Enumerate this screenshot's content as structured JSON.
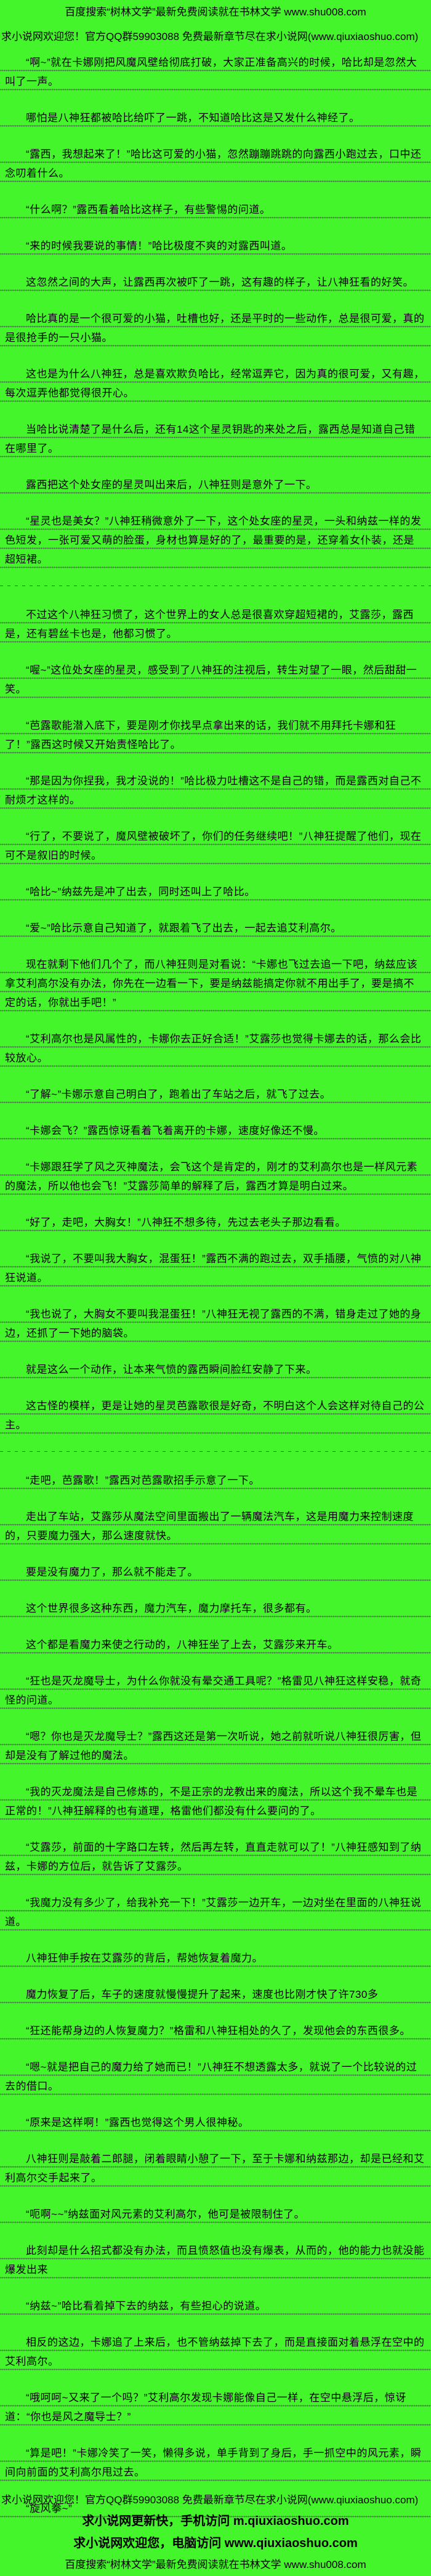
{
  "colors": {
    "background": "#45F52B",
    "text": "#000000",
    "rule_dots": "#4D4D58"
  },
  "header": {
    "line1": "百度搜索“树林文学”最新免费阅读就在书林文学 www.shu008.com",
    "line2": "求小说网欢迎您！官方QQ群59903088 免费最新章节尽在求小说网(www.qiuxiaoshuo.com)"
  },
  "paragraphs": [
    "“啊~”就在卡娜刚把风魔风壁给彻底打破，大家正准备高兴的时候，哈比却是忽然大叫了一声。",
    "哪怕是八神狂都被哈比给吓了一跳，不知道哈比这是又发什么神经了。",
    "“露西，我想起来了！”哈比这可爱的小猫，忽然蹦蹦跳跳的向露西小跑过去，口中还念叨着什么。",
    "“什么啊？”露西看着哈比这样子，有些警惕的问道。",
    "“来的时候我要说的事情！”哈比极度不爽的对露西叫道。",
    "这忽然之间的大声，让露西再次被吓了一跳，这有趣的样子，让八神狂看的好笑。",
    "哈比真的是一个很可爱的小猫，吐槽也好，还是平时的一些动作，总是很可爱，真的是很抢手的一只小猫。",
    "这也是为什么八神狂，总是喜欢欺负哈比，经常逗弄它，因为真的很可爱，又有趣，每次逗弄他都觉得很开心。",
    "当哈比说清楚了是什么后，还有14这个星灵钥匙的来处之后，露西总是知道自己错在哪里了。",
    "露西把这个处女座的星灵叫出来后，八神狂则是意外了一下。",
    "“星灵也是美女？”八神狂稍微意外了一下，这个处女座的星灵，一头和纳兹一样的发色短发，一张可爱又萌的脸蛋，身材也算是好的了，最重要的是，还穿着女仆装，还是超短裙。",
    "",
    "不过这个八神狂习惯了，这个世界上的女人总是很喜欢穿超短裙的，艾露莎，露西是，还有碧丝卡也是，他都习惯了。",
    "“喔~”这位处女座的星灵，感受到了八神狂的注视后，转生对望了一眼，然后甜甜一笑。",
    "“芭露歌能潜入底下，要是刚才你找早点拿出来的话，我们就不用拜托卡娜和狂了！”露西这时候又开始责怪哈比了。",
    "“那是因为你捏我，我才没说的！”哈比极力吐槽这不是自己的错，而是露西对自己不耐烦才这样的。",
    "“行了，不要说了，魔风壁被破坏了，你们的任务继续吧！”八神狂提醒了他们，现在可不是叙旧的时候。",
    "“哈比~”纳兹先是冲了出去，同时还叫上了哈比。",
    "“爱~”哈比示意自己知道了，就跟着飞了出去，一起去追艾利高尔。",
    "现在就剩下他们几个了，而八神狂则是对看说：“卡娜也飞过去追一下吧，纳兹应该拿艾利高尔没有办法，你先在一边看一下，要是纳兹能搞定你就不用出手了，要是搞不定的话，你就出手吧！”",
    "“艾利高尔也是风属性的，卡娜你去正好合适！”艾露莎也觉得卡娜去的话，那么会比较放心。",
    "“了解~”卡娜示意自己明白了，跑着出了车站之后，就飞了过去。",
    "“卡娜会飞？”露西惊讶看着飞着离开的卡娜，速度好像还不慢。",
    "“卡娜跟狂学了风之灭神魔法，会飞这个是肯定的，刚才的艾利高尔也是一样风元素的魔法，所以他也会飞！”艾露莎简单的解释了后，露西才算是明白过来。",
    "“好了，走吧，大胸女！”八神狂不想多待，先过去老头子那边看看。",
    "“我说了，不要叫我大胸女，混蛋狂！”露西不满的跑过去，双手插腰，气愤的对八神狂说道。",
    "“我也说了，大胸女不要叫我混蛋狂！”八神狂无视了露西的不满，错身走过了她的身边，还抓了一下她的脑袋。",
    "就是这么一个动作，让本来气愤的露西瞬间脸红安静了下来。",
    "这古怪的模样，更是让她的星灵芭露歌很是好奇，不明白这个人会这样对待自己的公主。",
    "",
    "“走吧，芭露歌！”露西对芭露歌招手示意了一下。",
    "走出了车站，艾露莎从魔法空间里面搬出了一辆魔法汽车，这是用魔力来控制速度的，只要魔力强大，那么速度就快。",
    "要是没有魔力了，那么就不能走了。",
    "这个世界很多这种东西，魔力汽车，魔力摩托车，很多都有。",
    "这个都是看魔力来使之行动的，八神狂坐了上去，艾露莎来开车。",
    "“狂也是灭龙魔导士，为什么你就没有晕交通工具呢？”格雷见八神狂这样安稳，就奇怪的问道。",
    "“嗯？你也是灭龙魔导士？”露西这还是第一次听说，她之前就听说八神狂很厉害，但却是没有了解过他的魔法。",
    "“我的灭龙魔法是自己修炼的，不是正宗的龙教出来的魔法，所以这个我不晕车也是正常的！”八神狂解释的也有道理，格雷他们都没有什么要问的了。",
    "“艾露莎，前面的十字路口左转，然后再左转，直直走就可以了！”八神狂感知到了纳兹，卡娜的方位后，就告诉了艾露莎。",
    "“我魔力没有多少了，给我补充一下！”艾露莎一边开车，一边对坐在里面的八神狂说道。",
    "八神狂伸手按在艾露莎的背后，帮她恢复着魔力。",
    "魔力恢复了后，车子的速度就慢慢提升了起来，速度也比刚才快了许730多",
    "“狂还能帮身边的人恢复魔力？”格雷和八神狂相处的久了，发现他会的东西很多。",
    "“嗯~就是把自己的魔力给了她而已！”八神狂不想透露太多，就说了一个比较说的过去的借口。",
    "“原来是这样啊！”露西也觉得这个男人很神秘。",
    "八神狂则是敲着二郎腿，闭着眼睛小憩了一下，至于卡娜和纳兹那边，却是已经和艾利高尔交手起来了。",
    "“呃啊~~”纳兹面对风元素的艾利高尔，他可是被限制住了。",
    "此刻却是什么招式都没有办法，而且愤怒值也没有爆表，从而的，他的能力也就没能爆发出来",
    "“纳兹~”哈比看着掉下去的纳兹，有些担心的说道。",
    "相反的这边，卡娜追了上来后，也不管纳兹掉下去了，而是直接面对着悬浮在空中的艾利高尔。",
    "“哦呵呵~又来了一个吗？”艾利高尔发现卡娜能像自己一样，在空中悬浮后，惊讶道：“你也是风之魔导士？”",
    "“算是吧！”卡娜冷笑了一笑，懒得多说，单手背到了身后，手一抓空中的风元素，瞬间向前面的艾利高尔甩过去。",
    "“旋风拳~”"
  ],
  "footer": {
    "qq_line": "求小说网欢迎您！官方QQ群59903088 免费最新章节尽在求小说网(www.qiuxiaoshuo.com)",
    "mobile_line": "求小说网更新快，手机访问 m.qiuxiaoshuo.com",
    "pc_line": "求小说网欢迎您，电脑访问 www.qiuxiaoshuo.com",
    "baidu_line": "百度搜索“树林文学”最新免费阅读就在书林文学 www.shu008.com"
  }
}
